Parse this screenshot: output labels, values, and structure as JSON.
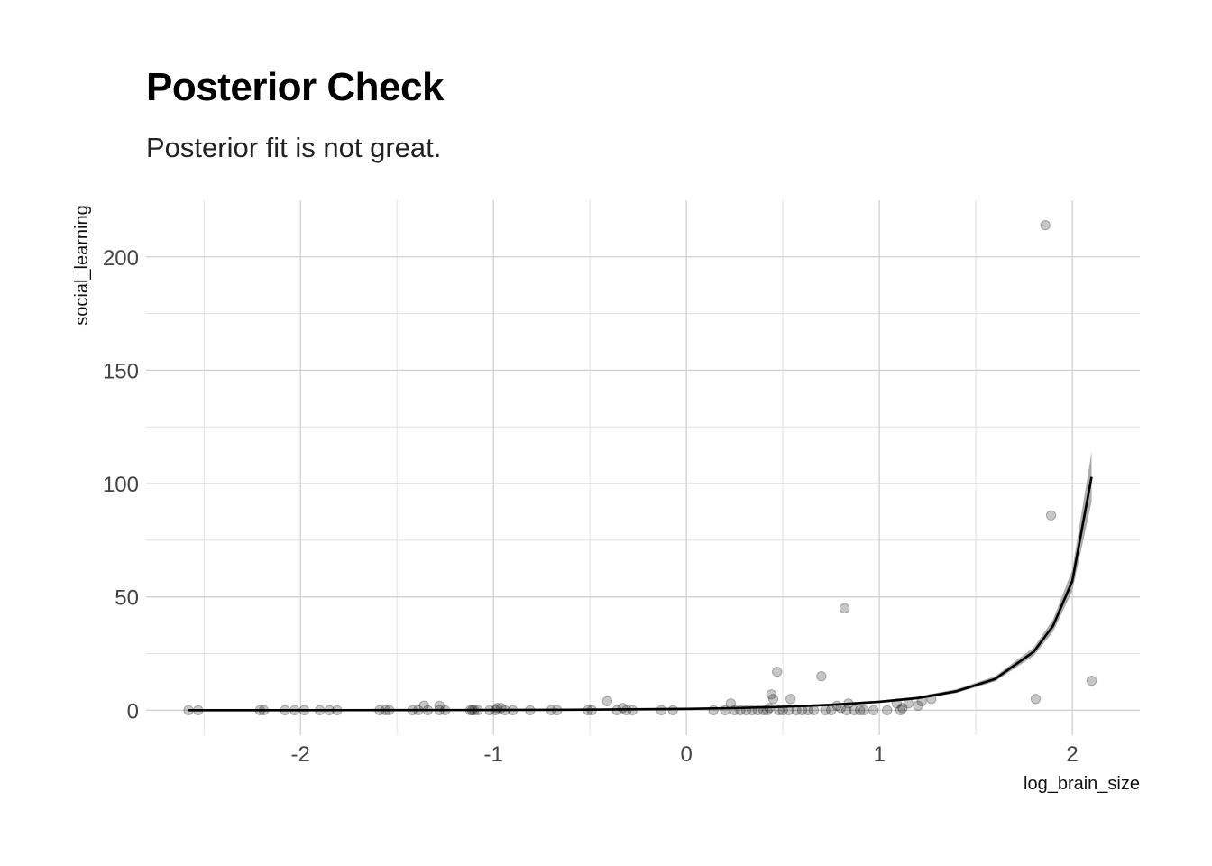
{
  "chart_data": {
    "type": "scatter",
    "title": "Posterior Check",
    "subtitle": "Posterior fit is not great.",
    "xlabel": "log_brain_size",
    "ylabel": "social_learning",
    "xlim": [
      -2.8,
      2.35
    ],
    "ylim": [
      -11,
      225
    ],
    "x_ticks": [
      -2,
      -1,
      0,
      1,
      2
    ],
    "x_tick_labels": [
      "-2",
      "-1",
      "0",
      "1",
      "2"
    ],
    "y_ticks": [
      0,
      50,
      100,
      150,
      200
    ],
    "y_tick_labels": [
      "0",
      "50",
      "100",
      "150",
      "200"
    ],
    "x_minor_ticks": [
      -2.5,
      -1.5,
      -0.5,
      0.5,
      1.5
    ],
    "y_minor_ticks": [
      25,
      75,
      125,
      175
    ],
    "grid": true,
    "series": [
      {
        "kind": "points",
        "color": "#000000",
        "opacity": 0.22,
        "points": [
          [
            -2.58,
            0
          ],
          [
            -2.53,
            0
          ],
          [
            -2.21,
            0
          ],
          [
            -2.19,
            0
          ],
          [
            -2.08,
            0
          ],
          [
            -2.03,
            0
          ],
          [
            -1.98,
            0
          ],
          [
            -1.9,
            0
          ],
          [
            -1.85,
            0
          ],
          [
            -1.81,
            0
          ],
          [
            -1.59,
            0
          ],
          [
            -1.56,
            0
          ],
          [
            -1.54,
            0
          ],
          [
            -1.42,
            0
          ],
          [
            -1.39,
            0
          ],
          [
            -1.36,
            2
          ],
          [
            -1.34,
            0
          ],
          [
            -1.28,
            2
          ],
          [
            -1.28,
            0
          ],
          [
            -1.25,
            0
          ],
          [
            -1.12,
            0
          ],
          [
            -1.11,
            0
          ],
          [
            -1.1,
            0
          ],
          [
            -1.08,
            0
          ],
          [
            -1.02,
            0
          ],
          [
            -0.99,
            0
          ],
          [
            -0.98,
            1
          ],
          [
            -0.96,
            1
          ],
          [
            -0.94,
            0
          ],
          [
            -0.9,
            0
          ],
          [
            -0.81,
            0
          ],
          [
            -0.7,
            0
          ],
          [
            -0.67,
            0
          ],
          [
            -0.51,
            0
          ],
          [
            -0.49,
            0
          ],
          [
            -0.41,
            4
          ],
          [
            -0.36,
            0
          ],
          [
            -0.33,
            1
          ],
          [
            -0.31,
            0
          ],
          [
            -0.28,
            0
          ],
          [
            -0.13,
            0
          ],
          [
            -0.07,
            0
          ],
          [
            0.14,
            0
          ],
          [
            0.2,
            0
          ],
          [
            0.23,
            3
          ],
          [
            0.25,
            0
          ],
          [
            0.28,
            0
          ],
          [
            0.31,
            0
          ],
          [
            0.34,
            0
          ],
          [
            0.37,
            0
          ],
          [
            0.4,
            0
          ],
          [
            0.42,
            0
          ],
          [
            0.43,
            1
          ],
          [
            0.44,
            7
          ],
          [
            0.45,
            5
          ],
          [
            0.47,
            17
          ],
          [
            0.48,
            0
          ],
          [
            0.5,
            0
          ],
          [
            0.53,
            0
          ],
          [
            0.54,
            5
          ],
          [
            0.57,
            0
          ],
          [
            0.6,
            0
          ],
          [
            0.63,
            0
          ],
          [
            0.66,
            0
          ],
          [
            0.7,
            15
          ],
          [
            0.72,
            0
          ],
          [
            0.75,
            0
          ],
          [
            0.78,
            2
          ],
          [
            0.8,
            1
          ],
          [
            0.82,
            45
          ],
          [
            0.83,
            0
          ],
          [
            0.84,
            3
          ],
          [
            0.87,
            0
          ],
          [
            0.9,
            0
          ],
          [
            0.92,
            0
          ],
          [
            0.97,
            0
          ],
          [
            1.04,
            0
          ],
          [
            1.09,
            3
          ],
          [
            1.11,
            0
          ],
          [
            1.12,
            1
          ],
          [
            1.15,
            3
          ],
          [
            1.2,
            2
          ],
          [
            1.22,
            4
          ],
          [
            1.27,
            5
          ],
          [
            1.81,
            5
          ],
          [
            1.86,
            214
          ],
          [
            1.89,
            86
          ],
          [
            2.1,
            13
          ]
        ]
      },
      {
        "kind": "fit-line",
        "name": "",
        "color": "#000000",
        "band_color": "#a6a6a6",
        "x": [
          -2.58,
          -2.0,
          -1.5,
          -1.0,
          -0.5,
          0.0,
          0.25,
          0.5,
          0.75,
          1.0,
          1.2,
          1.4,
          1.6,
          1.8,
          1.9,
          2.0,
          2.1
        ],
        "y": [
          0.01,
          0.02,
          0.05,
          0.11,
          0.26,
          0.63,
          0.99,
          1.54,
          2.4,
          3.75,
          5.4,
          8.4,
          13.8,
          25.8,
          37.2,
          57.0,
          103.0
        ],
        "lower": [
          0.0,
          0.0,
          0.02,
          0.06,
          0.15,
          0.45,
          0.75,
          1.2,
          1.95,
          3.2,
          4.8,
          7.6,
          12.7,
          24.0,
          34.6,
          52.5,
          92.0
        ],
        "upper": [
          0.03,
          0.05,
          0.09,
          0.18,
          0.38,
          0.85,
          1.25,
          1.9,
          2.9,
          4.3,
          6.1,
          9.3,
          15.0,
          27.7,
          40.0,
          62.0,
          114.0
        ]
      }
    ]
  }
}
